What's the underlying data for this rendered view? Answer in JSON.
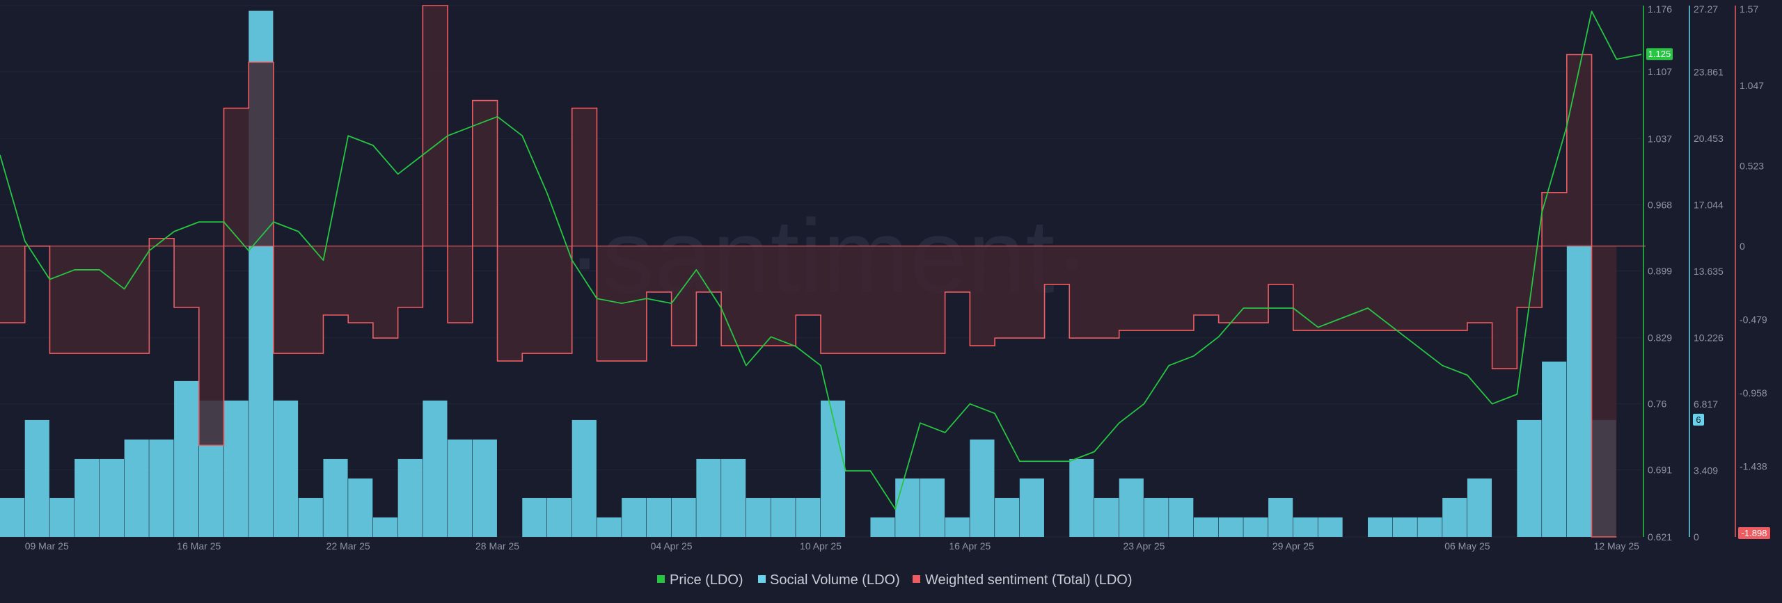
{
  "watermark": "·santiment·",
  "legend": {
    "price": "Price (LDO)",
    "social": "Social Volume (LDO)",
    "sentiment": "Weighted sentiment (Total) (LDO)"
  },
  "colors": {
    "background": "#191c2c",
    "price": "#26c643",
    "social": "#68d3ea",
    "sentiment": "#ee5c61",
    "sentiment_fill": "#3f2430",
    "grid": "#22263a"
  },
  "chart_data": {
    "type": "line",
    "x_range": [
      "2025-03-08",
      "2025-05-13"
    ],
    "x_ticks": [
      "09 Mar 25",
      "16 Mar 25",
      "22 Mar 25",
      "28 Mar 25",
      "04 Apr 25",
      "10 Apr 25",
      "16 Apr 25",
      "23 Apr 25",
      "29 Apr 25",
      "06 May 25",
      "12 May 25"
    ],
    "axes": {
      "price": {
        "range": [
          0.621,
          1.176
        ],
        "ticks": [
          "1.176",
          "1.107",
          "1.037",
          "0.968",
          "0.899",
          "0.829",
          "0.76",
          "0.691",
          "0.621"
        ],
        "current": "1.125"
      },
      "social": {
        "range": [
          0,
          27.27
        ],
        "ticks": [
          "27.27",
          "23.861",
          "20.453",
          "17.044",
          "13.635",
          "10.226",
          "6.817",
          "3.409",
          "0"
        ],
        "current": "6"
      },
      "sentiment": {
        "range": [
          -1.898,
          1.57
        ],
        "ticks": [
          "1.57",
          "1.047",
          "0.523",
          "0",
          "-0.479",
          "-0.958",
          "-1.438"
        ],
        "current": "-1.898",
        "baseline": 0
      }
    },
    "series": [
      {
        "name": "Price (LDO)",
        "axis": "price",
        "points": [
          [
            "2025-03-08",
            1.02
          ],
          [
            "2025-03-09",
            0.93
          ],
          [
            "2025-03-10",
            0.89
          ],
          [
            "2025-03-11",
            0.9
          ],
          [
            "2025-03-12",
            0.9
          ],
          [
            "2025-03-13",
            0.88
          ],
          [
            "2025-03-14",
            0.92
          ],
          [
            "2025-03-15",
            0.94
          ],
          [
            "2025-03-16",
            0.95
          ],
          [
            "2025-03-17",
            0.95
          ],
          [
            "2025-03-18",
            0.92
          ],
          [
            "2025-03-19",
            0.95
          ],
          [
            "2025-03-20",
            0.94
          ],
          [
            "2025-03-21",
            0.91
          ],
          [
            "2025-03-22",
            1.04
          ],
          [
            "2025-03-23",
            1.03
          ],
          [
            "2025-03-24",
            1.0
          ],
          [
            "2025-03-25",
            1.02
          ],
          [
            "2025-03-26",
            1.04
          ],
          [
            "2025-03-27",
            1.05
          ],
          [
            "2025-03-28",
            1.06
          ],
          [
            "2025-03-29",
            1.04
          ],
          [
            "2025-03-30",
            0.98
          ],
          [
            "2025-03-31",
            0.91
          ],
          [
            "2025-04-01",
            0.87
          ],
          [
            "2025-04-02",
            0.865
          ],
          [
            "2025-04-03",
            0.87
          ],
          [
            "2025-04-04",
            0.865
          ],
          [
            "2025-04-05",
            0.9
          ],
          [
            "2025-04-06",
            0.86
          ],
          [
            "2025-04-07",
            0.8
          ],
          [
            "2025-04-08",
            0.83
          ],
          [
            "2025-04-09",
            0.82
          ],
          [
            "2025-04-10",
            0.8
          ],
          [
            "2025-04-11",
            0.69
          ],
          [
            "2025-04-12",
            0.69
          ],
          [
            "2025-04-13",
            0.65
          ],
          [
            "2025-04-14",
            0.74
          ],
          [
            "2025-04-15",
            0.73
          ],
          [
            "2025-04-16",
            0.76
          ],
          [
            "2025-04-17",
            0.75
          ],
          [
            "2025-04-18",
            0.7
          ],
          [
            "2025-04-19",
            0.7
          ],
          [
            "2025-04-20",
            0.7
          ],
          [
            "2025-04-21",
            0.71
          ],
          [
            "2025-04-22",
            0.74
          ],
          [
            "2025-04-23",
            0.76
          ],
          [
            "2025-04-24",
            0.8
          ],
          [
            "2025-04-25",
            0.81
          ],
          [
            "2025-04-26",
            0.83
          ],
          [
            "2025-04-27",
            0.86
          ],
          [
            "2025-04-28",
            0.86
          ],
          [
            "2025-04-29",
            0.86
          ],
          [
            "2025-04-30",
            0.84
          ],
          [
            "2025-05-01",
            0.85
          ],
          [
            "2025-05-02",
            0.86
          ],
          [
            "2025-05-03",
            0.84
          ],
          [
            "2025-05-04",
            0.82
          ],
          [
            "2025-05-05",
            0.8
          ],
          [
            "2025-05-06",
            0.79
          ],
          [
            "2025-05-07",
            0.76
          ],
          [
            "2025-05-08",
            0.77
          ],
          [
            "2025-05-09",
            0.96
          ],
          [
            "2025-05-10",
            1.05
          ],
          [
            "2025-05-11",
            1.17
          ],
          [
            "2025-05-12",
            1.12
          ],
          [
            "2025-05-13",
            1.125
          ]
        ]
      },
      {
        "name": "Social Volume (LDO)",
        "axis": "social",
        "type": "bar",
        "points": [
          [
            "2025-03-08",
            2
          ],
          [
            "2025-03-09",
            6
          ],
          [
            "2025-03-10",
            2
          ],
          [
            "2025-03-11",
            4
          ],
          [
            "2025-03-12",
            4
          ],
          [
            "2025-03-13",
            5
          ],
          [
            "2025-03-14",
            5
          ],
          [
            "2025-03-15",
            8
          ],
          [
            "2025-03-16",
            7
          ],
          [
            "2025-03-17",
            7
          ],
          [
            "2025-03-18",
            27
          ],
          [
            "2025-03-19",
            7
          ],
          [
            "2025-03-20",
            2
          ],
          [
            "2025-03-21",
            4
          ],
          [
            "2025-03-22",
            3
          ],
          [
            "2025-03-23",
            1
          ],
          [
            "2025-03-24",
            4
          ],
          [
            "2025-03-25",
            7
          ],
          [
            "2025-03-26",
            5
          ],
          [
            "2025-03-27",
            5
          ],
          [
            "2025-03-28",
            0
          ],
          [
            "2025-03-29",
            2
          ],
          [
            "2025-03-30",
            2
          ],
          [
            "2025-03-31",
            6
          ],
          [
            "2025-04-01",
            1
          ],
          [
            "2025-04-02",
            2
          ],
          [
            "2025-04-03",
            2
          ],
          [
            "2025-04-04",
            2
          ],
          [
            "2025-04-05",
            4
          ],
          [
            "2025-04-06",
            4
          ],
          [
            "2025-04-07",
            2
          ],
          [
            "2025-04-08",
            2
          ],
          [
            "2025-04-09",
            2
          ],
          [
            "2025-04-10",
            7
          ],
          [
            "2025-04-11",
            0
          ],
          [
            "2025-04-12",
            1
          ],
          [
            "2025-04-13",
            3
          ],
          [
            "2025-04-14",
            3
          ],
          [
            "2025-04-15",
            1
          ],
          [
            "2025-04-16",
            5
          ],
          [
            "2025-04-17",
            2
          ],
          [
            "2025-04-18",
            3
          ],
          [
            "2025-04-19",
            0
          ],
          [
            "2025-04-20",
            4
          ],
          [
            "2025-04-21",
            2
          ],
          [
            "2025-04-22",
            3
          ],
          [
            "2025-04-23",
            2
          ],
          [
            "2025-04-24",
            2
          ],
          [
            "2025-04-25",
            1
          ],
          [
            "2025-04-26",
            1
          ],
          [
            "2025-04-27",
            1
          ],
          [
            "2025-04-28",
            2
          ],
          [
            "2025-04-29",
            1
          ],
          [
            "2025-04-30",
            1
          ],
          [
            "2025-05-01",
            0
          ],
          [
            "2025-05-02",
            1
          ],
          [
            "2025-05-03",
            1
          ],
          [
            "2025-05-04",
            1
          ],
          [
            "2025-05-05",
            2
          ],
          [
            "2025-05-06",
            3
          ],
          [
            "2025-05-07",
            0
          ],
          [
            "2025-05-08",
            6
          ],
          [
            "2025-05-09",
            9
          ],
          [
            "2025-05-10",
            15
          ],
          [
            "2025-05-11",
            6
          ]
        ]
      },
      {
        "name": "Weighted sentiment (Total) (LDO)",
        "axis": "sentiment",
        "type": "step",
        "points": [
          [
            "2025-03-08",
            -0.5
          ],
          [
            "2025-03-09",
            0
          ],
          [
            "2025-03-10",
            -0.7
          ],
          [
            "2025-03-11",
            -0.7
          ],
          [
            "2025-03-12",
            -0.7
          ],
          [
            "2025-03-13",
            -0.7
          ],
          [
            "2025-03-14",
            0.05
          ],
          [
            "2025-03-15",
            -0.4
          ],
          [
            "2025-03-16",
            -1.3
          ],
          [
            "2025-03-17",
            0.9
          ],
          [
            "2025-03-18",
            1.2
          ],
          [
            "2025-03-19",
            -0.7
          ],
          [
            "2025-03-20",
            -0.7
          ],
          [
            "2025-03-21",
            -0.45
          ],
          [
            "2025-03-22",
            -0.5
          ],
          [
            "2025-03-23",
            -0.6
          ],
          [
            "2025-03-24",
            -0.4
          ],
          [
            "2025-03-25",
            1.57
          ],
          [
            "2025-03-26",
            -0.5
          ],
          [
            "2025-03-27",
            0.95
          ],
          [
            "2025-03-28",
            -0.75
          ],
          [
            "2025-03-29",
            -0.7
          ],
          [
            "2025-03-30",
            -0.7
          ],
          [
            "2025-03-31",
            0.9
          ],
          [
            "2025-04-01",
            -0.75
          ],
          [
            "2025-04-02",
            -0.75
          ],
          [
            "2025-04-03",
            -0.3
          ],
          [
            "2025-04-04",
            -0.65
          ],
          [
            "2025-04-05",
            -0.3
          ],
          [
            "2025-04-06",
            -0.65
          ],
          [
            "2025-04-07",
            -0.65
          ],
          [
            "2025-04-08",
            -0.65
          ],
          [
            "2025-04-09",
            -0.45
          ],
          [
            "2025-04-10",
            -0.7
          ],
          [
            "2025-04-11",
            -0.7
          ],
          [
            "2025-04-12",
            -0.7
          ],
          [
            "2025-04-13",
            -0.7
          ],
          [
            "2025-04-14",
            -0.7
          ],
          [
            "2025-04-15",
            -0.3
          ],
          [
            "2025-04-16",
            -0.65
          ],
          [
            "2025-04-17",
            -0.6
          ],
          [
            "2025-04-18",
            -0.6
          ],
          [
            "2025-04-19",
            -0.25
          ],
          [
            "2025-04-20",
            -0.6
          ],
          [
            "2025-04-21",
            -0.6
          ],
          [
            "2025-04-22",
            -0.55
          ],
          [
            "2025-04-23",
            -0.55
          ],
          [
            "2025-04-24",
            -0.55
          ],
          [
            "2025-04-25",
            -0.45
          ],
          [
            "2025-04-26",
            -0.5
          ],
          [
            "2025-04-27",
            -0.5
          ],
          [
            "2025-04-28",
            -0.25
          ],
          [
            "2025-04-29",
            -0.55
          ],
          [
            "2025-04-30",
            -0.55
          ],
          [
            "2025-05-01",
            -0.55
          ],
          [
            "2025-05-02",
            -0.55
          ],
          [
            "2025-05-03",
            -0.55
          ],
          [
            "2025-05-04",
            -0.55
          ],
          [
            "2025-05-05",
            -0.55
          ],
          [
            "2025-05-06",
            -0.5
          ],
          [
            "2025-05-07",
            -0.8
          ],
          [
            "2025-05-08",
            -0.4
          ],
          [
            "2025-05-09",
            0.35
          ],
          [
            "2025-05-10",
            1.25
          ],
          [
            "2025-05-11",
            -1.898
          ]
        ]
      }
    ]
  }
}
